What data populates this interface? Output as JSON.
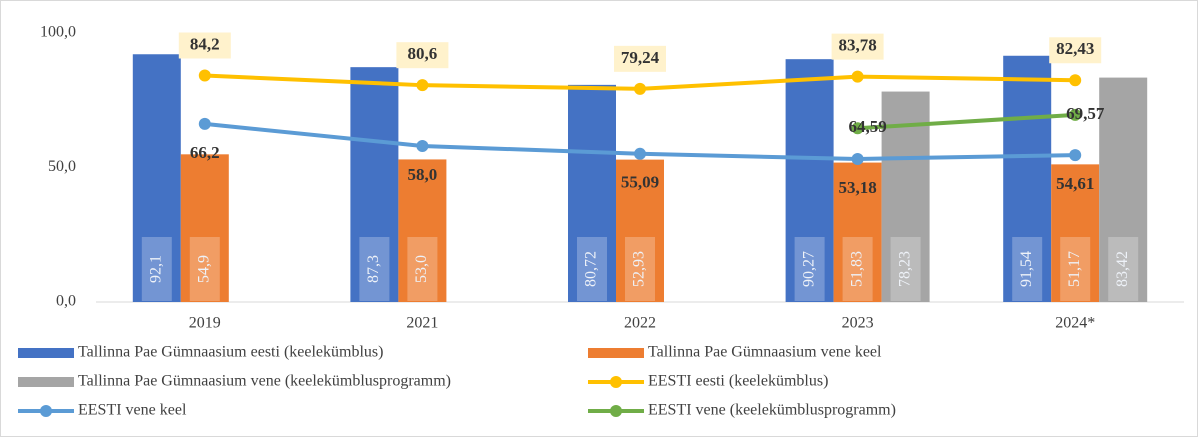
{
  "chart_data": {
    "type": "combo",
    "categories": [
      "2019",
      "2021",
      "2022",
      "2023",
      "2024*"
    ],
    "ylim": [
      0,
      100
    ],
    "yticks": [
      {
        "value": 0,
        "label": "0,0"
      },
      {
        "value": 50,
        "label": "50,0"
      },
      {
        "value": 100,
        "label": "100,0"
      }
    ],
    "grid": false,
    "series": [
      {
        "name": "Tallinna Pae Gümnaasium eesti (keelekümblus)",
        "type": "bar",
        "color": "#4472c4",
        "values": [
          92.1,
          87.3,
          80.72,
          90.27,
          91.54
        ],
        "value_labels": [
          "92,1",
          "87,3",
          "80,72",
          "90,27",
          "91,54"
        ]
      },
      {
        "name": "Tallinna Pae Gümnaasium vene keel",
        "type": "bar",
        "color": "#ed7d31",
        "values": [
          54.9,
          53.0,
          52.93,
          51.83,
          51.17
        ],
        "value_labels": [
          "54,9",
          "53,0",
          "52,93",
          "51,83",
          "51,17"
        ]
      },
      {
        "name": "Tallinna Pae Gümnaasium vene (keelekümblusprogramm)",
        "type": "bar",
        "color": "#a5a5a5",
        "values": [
          null,
          null,
          null,
          78.23,
          83.42
        ],
        "value_labels": [
          null,
          null,
          null,
          "78,23",
          "83,42"
        ]
      },
      {
        "name": "EESTI eesti (keelekümblus)",
        "type": "line",
        "color": "#ffc000",
        "values": [
          84.2,
          80.6,
          79.24,
          83.78,
          82.43
        ],
        "value_labels": [
          "84,2",
          "80,6",
          "79,24",
          "83,78",
          "82,43"
        ]
      },
      {
        "name": "EESTI vene keel",
        "type": "line",
        "color": "#5b9bd5",
        "values": [
          66.2,
          58.0,
          55.09,
          53.18,
          54.61
        ],
        "value_labels": [
          "66,2",
          "58,0",
          "55,09",
          "53,18",
          "54,61"
        ]
      },
      {
        "name": "EESTI vene (keelekümblusprogramm)",
        "type": "line",
        "color": "#70ad47",
        "values": [
          null,
          null,
          null,
          64.59,
          69.57
        ],
        "value_labels": [
          null,
          null,
          null,
          "64,59",
          "69,57"
        ]
      }
    ]
  }
}
